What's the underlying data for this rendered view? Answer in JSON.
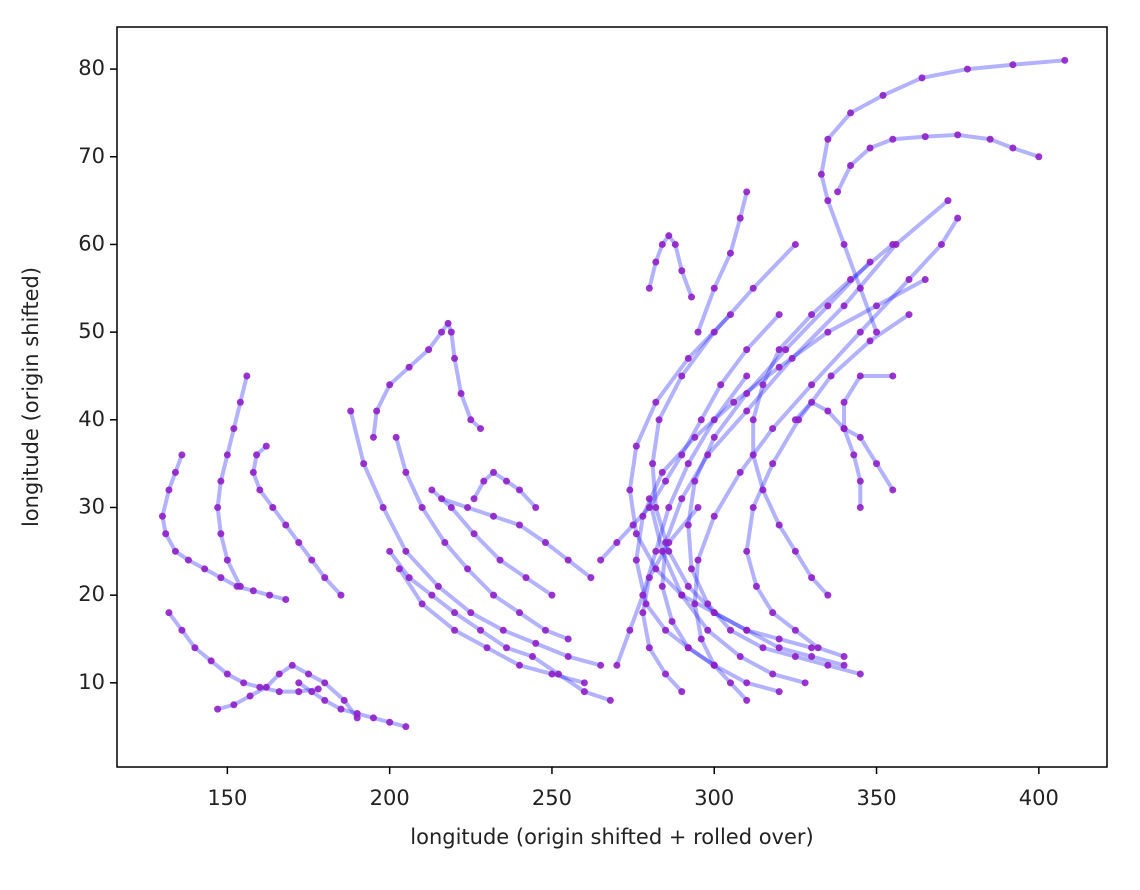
{
  "chart_data": {
    "type": "line",
    "xlabel": "longitude (origin shifted + rolled over)",
    "ylabel": "longitude (origin shifted)",
    "xlim": [
      116,
      421
    ],
    "ylim": [
      0.4,
      84.8
    ],
    "xticks": [
      150,
      200,
      250,
      300,
      350,
      400
    ],
    "yticks": [
      10,
      20,
      30,
      40,
      50,
      60,
      70,
      80
    ],
    "line_color": "#0000ff",
    "marker_color": "#8f1fc8",
    "series": [
      {
        "x": [
          136,
          134,
          132,
          130,
          131,
          134,
          138,
          143,
          148,
          153,
          158,
          163,
          168
        ],
        "y": [
          36,
          34,
          32,
          29,
          27,
          25,
          24,
          23,
          22,
          21,
          20.5,
          20,
          19.5
        ]
      },
      {
        "x": [
          132,
          136,
          140,
          145,
          150,
          155,
          160,
          166,
          172,
          178
        ],
        "y": [
          18,
          16,
          14,
          12.5,
          11,
          10,
          9.5,
          9,
          9,
          9.3
        ]
      },
      {
        "x": [
          147,
          152,
          157,
          162,
          166,
          170,
          175,
          180,
          186,
          190
        ],
        "y": [
          7,
          7.5,
          8.5,
          9.5,
          11,
          12,
          11,
          10,
          8,
          6
        ]
      },
      {
        "x": [
          156,
          154,
          152,
          150,
          148,
          147,
          148,
          150,
          154
        ],
        "y": [
          45,
          42,
          39,
          36,
          33,
          30,
          27,
          24,
          21
        ]
      },
      {
        "x": [
          162,
          159,
          158,
          160,
          164,
          168,
          172,
          176,
          180,
          185
        ],
        "y": [
          37,
          36,
          34,
          32,
          30,
          28,
          26,
          24,
          22,
          20
        ]
      },
      {
        "x": [
          228,
          225,
          222,
          220,
          219,
          218,
          216,
          212,
          206,
          200,
          196,
          195
        ],
        "y": [
          39,
          40,
          43,
          47,
          50,
          51,
          50,
          48,
          46,
          44,
          41,
          38
        ]
      },
      {
        "x": [
          205,
          200,
          195,
          190,
          185,
          180,
          176,
          172
        ],
        "y": [
          5,
          5.5,
          6,
          6.5,
          7,
          8,
          9,
          10
        ]
      },
      {
        "x": [
          265,
          255,
          245,
          235,
          225,
          215,
          205,
          198,
          192,
          188
        ],
        "y": [
          12,
          13,
          14.5,
          16,
          18,
          21,
          25,
          30,
          35,
          41
        ]
      },
      {
        "x": [
          260,
          250,
          240,
          230,
          220,
          210,
          203
        ],
        "y": [
          10,
          11,
          12,
          14,
          16,
          19,
          23
        ]
      },
      {
        "x": [
          255,
          248,
          240,
          232,
          224,
          217,
          210,
          205,
          202
        ],
        "y": [
          15,
          16,
          18,
          20,
          23,
          26,
          30,
          34,
          38
        ]
      },
      {
        "x": [
          250,
          242,
          234,
          226,
          219,
          213
        ],
        "y": [
          20,
          22,
          24,
          27,
          30,
          32
        ]
      },
      {
        "x": [
          268,
          260,
          252,
          244,
          236,
          228,
          220,
          213,
          206,
          200
        ],
        "y": [
          8,
          9,
          11,
          13,
          14,
          16,
          18,
          20,
          22,
          25
        ]
      },
      {
        "x": [
          245,
          240,
          236,
          232,
          229,
          226
        ],
        "y": [
          30,
          32,
          33,
          34,
          33,
          31
        ]
      },
      {
        "x": [
          262,
          255,
          248,
          240,
          232,
          224,
          216
        ],
        "y": [
          22,
          24,
          26,
          28,
          29,
          30,
          31
        ]
      },
      {
        "x": [
          340,
          330,
          320,
          310,
          300,
          292,
          286,
          282,
          281,
          283,
          290,
          300,
          312,
          325
        ],
        "y": [
          12,
          13,
          14,
          16,
          18,
          21,
          25,
          30,
          35,
          40,
          45,
          50,
          55,
          60
        ]
      },
      {
        "x": [
          345,
          335,
          325,
          315,
          305,
          298,
          293,
          292,
          294,
          300,
          310,
          322,
          335,
          348
        ],
        "y": [
          11,
          12,
          13,
          14,
          16,
          19,
          23,
          28,
          33,
          38,
          43,
          48,
          53,
          58
        ]
      },
      {
        "x": [
          330,
          320,
          310,
          300,
          290,
          282,
          276,
          274,
          276,
          282,
          292,
          305
        ],
        "y": [
          14,
          15,
          16,
          18,
          20,
          23,
          27,
          32,
          37,
          42,
          47,
          52
        ]
      },
      {
        "x": [
          300,
          292,
          285,
          279,
          276,
          278,
          284,
          294,
          306,
          320,
          335,
          350,
          365
        ],
        "y": [
          12,
          14,
          16,
          19,
          24,
          29,
          34,
          38,
          42,
          46,
          50,
          53,
          56
        ]
      },
      {
        "x": [
          320,
          310,
          300,
          292,
          287,
          284,
          285,
          290,
          298,
          310,
          324,
          340,
          356,
          372
        ],
        "y": [
          9,
          10,
          12,
          14,
          17,
          21,
          26,
          31,
          36,
          41,
          47,
          53,
          60,
          65
        ]
      },
      {
        "x": [
          350,
          345,
          340,
          335,
          333,
          335,
          342,
          352,
          364,
          378,
          392,
          408
        ],
        "y": [
          50,
          55,
          60,
          65,
          68,
          72,
          75,
          77,
          79,
          80,
          80.5,
          81
        ]
      },
      {
        "x": [
          338,
          342,
          348,
          355,
          365,
          375,
          385,
          392,
          400
        ],
        "y": [
          66,
          69,
          71,
          72,
          72.3,
          72.5,
          72,
          71,
          70
        ]
      },
      {
        "x": [
          280,
          282,
          284,
          286,
          288,
          290,
          293
        ],
        "y": [
          55,
          58,
          60,
          61,
          60,
          57,
          54
        ]
      },
      {
        "x": [
          295,
          300,
          305,
          308,
          310
        ],
        "y": [
          50,
          55,
          59,
          63,
          66
        ]
      },
      {
        "x": [
          270,
          274,
          278,
          282,
          286,
          292,
          300,
          310
        ],
        "y": [
          12,
          16,
          20,
          25,
          30,
          35,
          40,
          45
        ]
      },
      {
        "x": [
          265,
          270,
          275,
          280,
          285,
          290,
          296,
          302,
          310,
          320
        ],
        "y": [
          24,
          26,
          28,
          30,
          33,
          36,
          40,
          44,
          48,
          52
        ]
      },
      {
        "x": [
          335,
          330,
          325,
          320,
          315,
          312,
          312,
          315,
          320,
          330,
          342,
          355
        ],
        "y": [
          20,
          22,
          25,
          28,
          32,
          36,
          40,
          44,
          48,
          52,
          56,
          60
        ]
      },
      {
        "x": [
          345,
          345,
          343,
          340,
          340,
          345,
          355
        ],
        "y": [
          30,
          33,
          36,
          39,
          42,
          45,
          45
        ]
      },
      {
        "x": [
          325,
          330,
          335,
          340,
          345,
          350,
          355
        ],
        "y": [
          40,
          42,
          41,
          39,
          38,
          35,
          32
        ]
      },
      {
        "x": [
          310,
          305,
          300,
          296,
          294,
          295,
          300,
          308,
          318,
          330,
          345,
          360,
          370,
          375
        ],
        "y": [
          8,
          10,
          12,
          15,
          19,
          24,
          29,
          34,
          39,
          44,
          50,
          56,
          60,
          63
        ]
      },
      {
        "x": [
          290,
          285,
          280,
          278,
          280,
          286,
          295
        ],
        "y": [
          9,
          11,
          14,
          18,
          22,
          26,
          30
        ]
      },
      {
        "x": [
          328,
          318,
          308,
          298,
          290,
          284,
          280
        ],
        "y": [
          10,
          11,
          13,
          16,
          20,
          25,
          31
        ]
      },
      {
        "x": [
          340,
          332,
          325,
          318,
          313,
          310,
          312,
          318,
          326,
          336,
          348,
          360
        ],
        "y": [
          13,
          14,
          16,
          18,
          21,
          25,
          30,
          35,
          40,
          45,
          49,
          52
        ]
      }
    ]
  }
}
